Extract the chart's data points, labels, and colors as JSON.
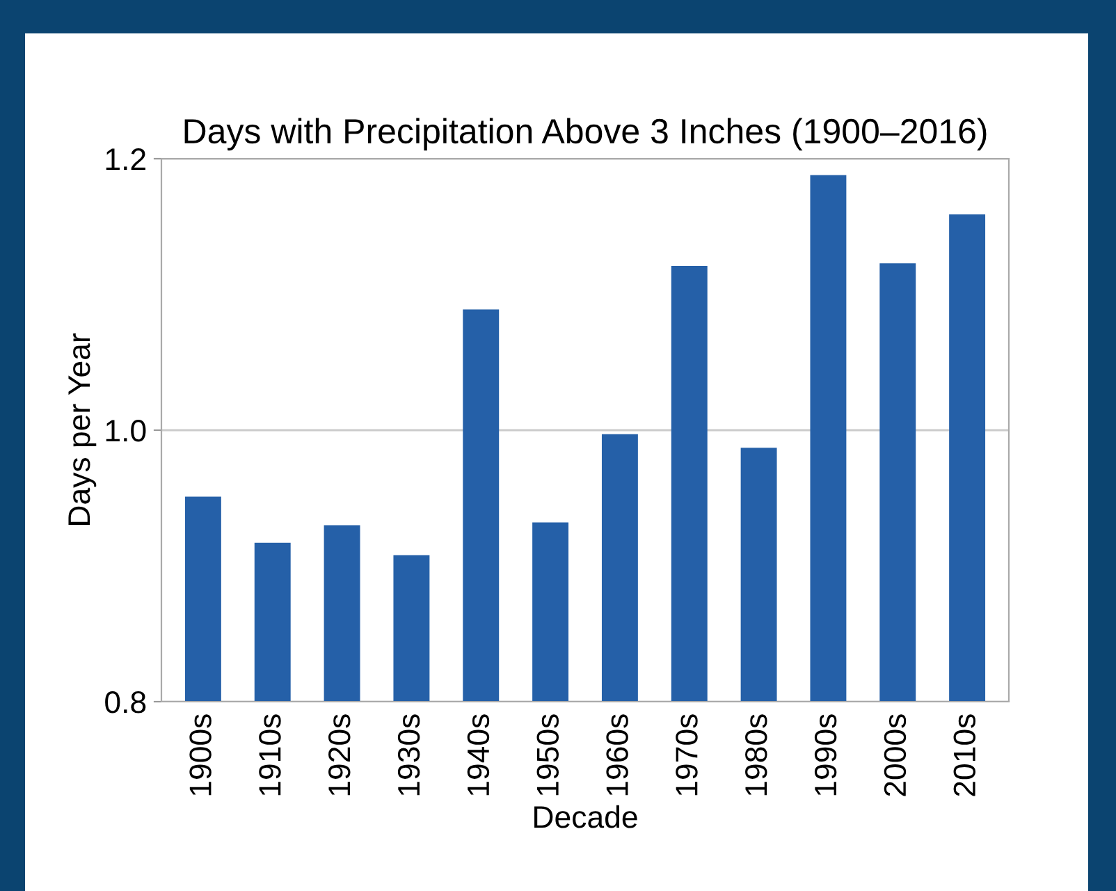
{
  "chart_data": {
    "type": "bar",
    "title": "Days with Precipitation Above 3 Inches (1900–2016)",
    "xlabel": "Decade",
    "ylabel": "Days per Year",
    "categories": [
      "1900s",
      "1910s",
      "1920s",
      "1930s",
      "1940s",
      "1950s",
      "1960s",
      "1970s",
      "1980s",
      "1990s",
      "2000s",
      "2010s"
    ],
    "values": [
      0.951,
      0.917,
      0.93,
      0.908,
      1.089,
      0.932,
      0.997,
      1.121,
      0.987,
      1.188,
      1.123,
      1.159
    ],
    "color": "#2560a8",
    "ylim": [
      0.8,
      1.2
    ],
    "yticks": [
      {
        "value": 0.8,
        "label": "0.8"
      },
      {
        "value": 1.0,
        "label": "1.0"
      },
      {
        "value": 1.2,
        "label": "1.2"
      }
    ],
    "grid": "y",
    "legend": false
  }
}
